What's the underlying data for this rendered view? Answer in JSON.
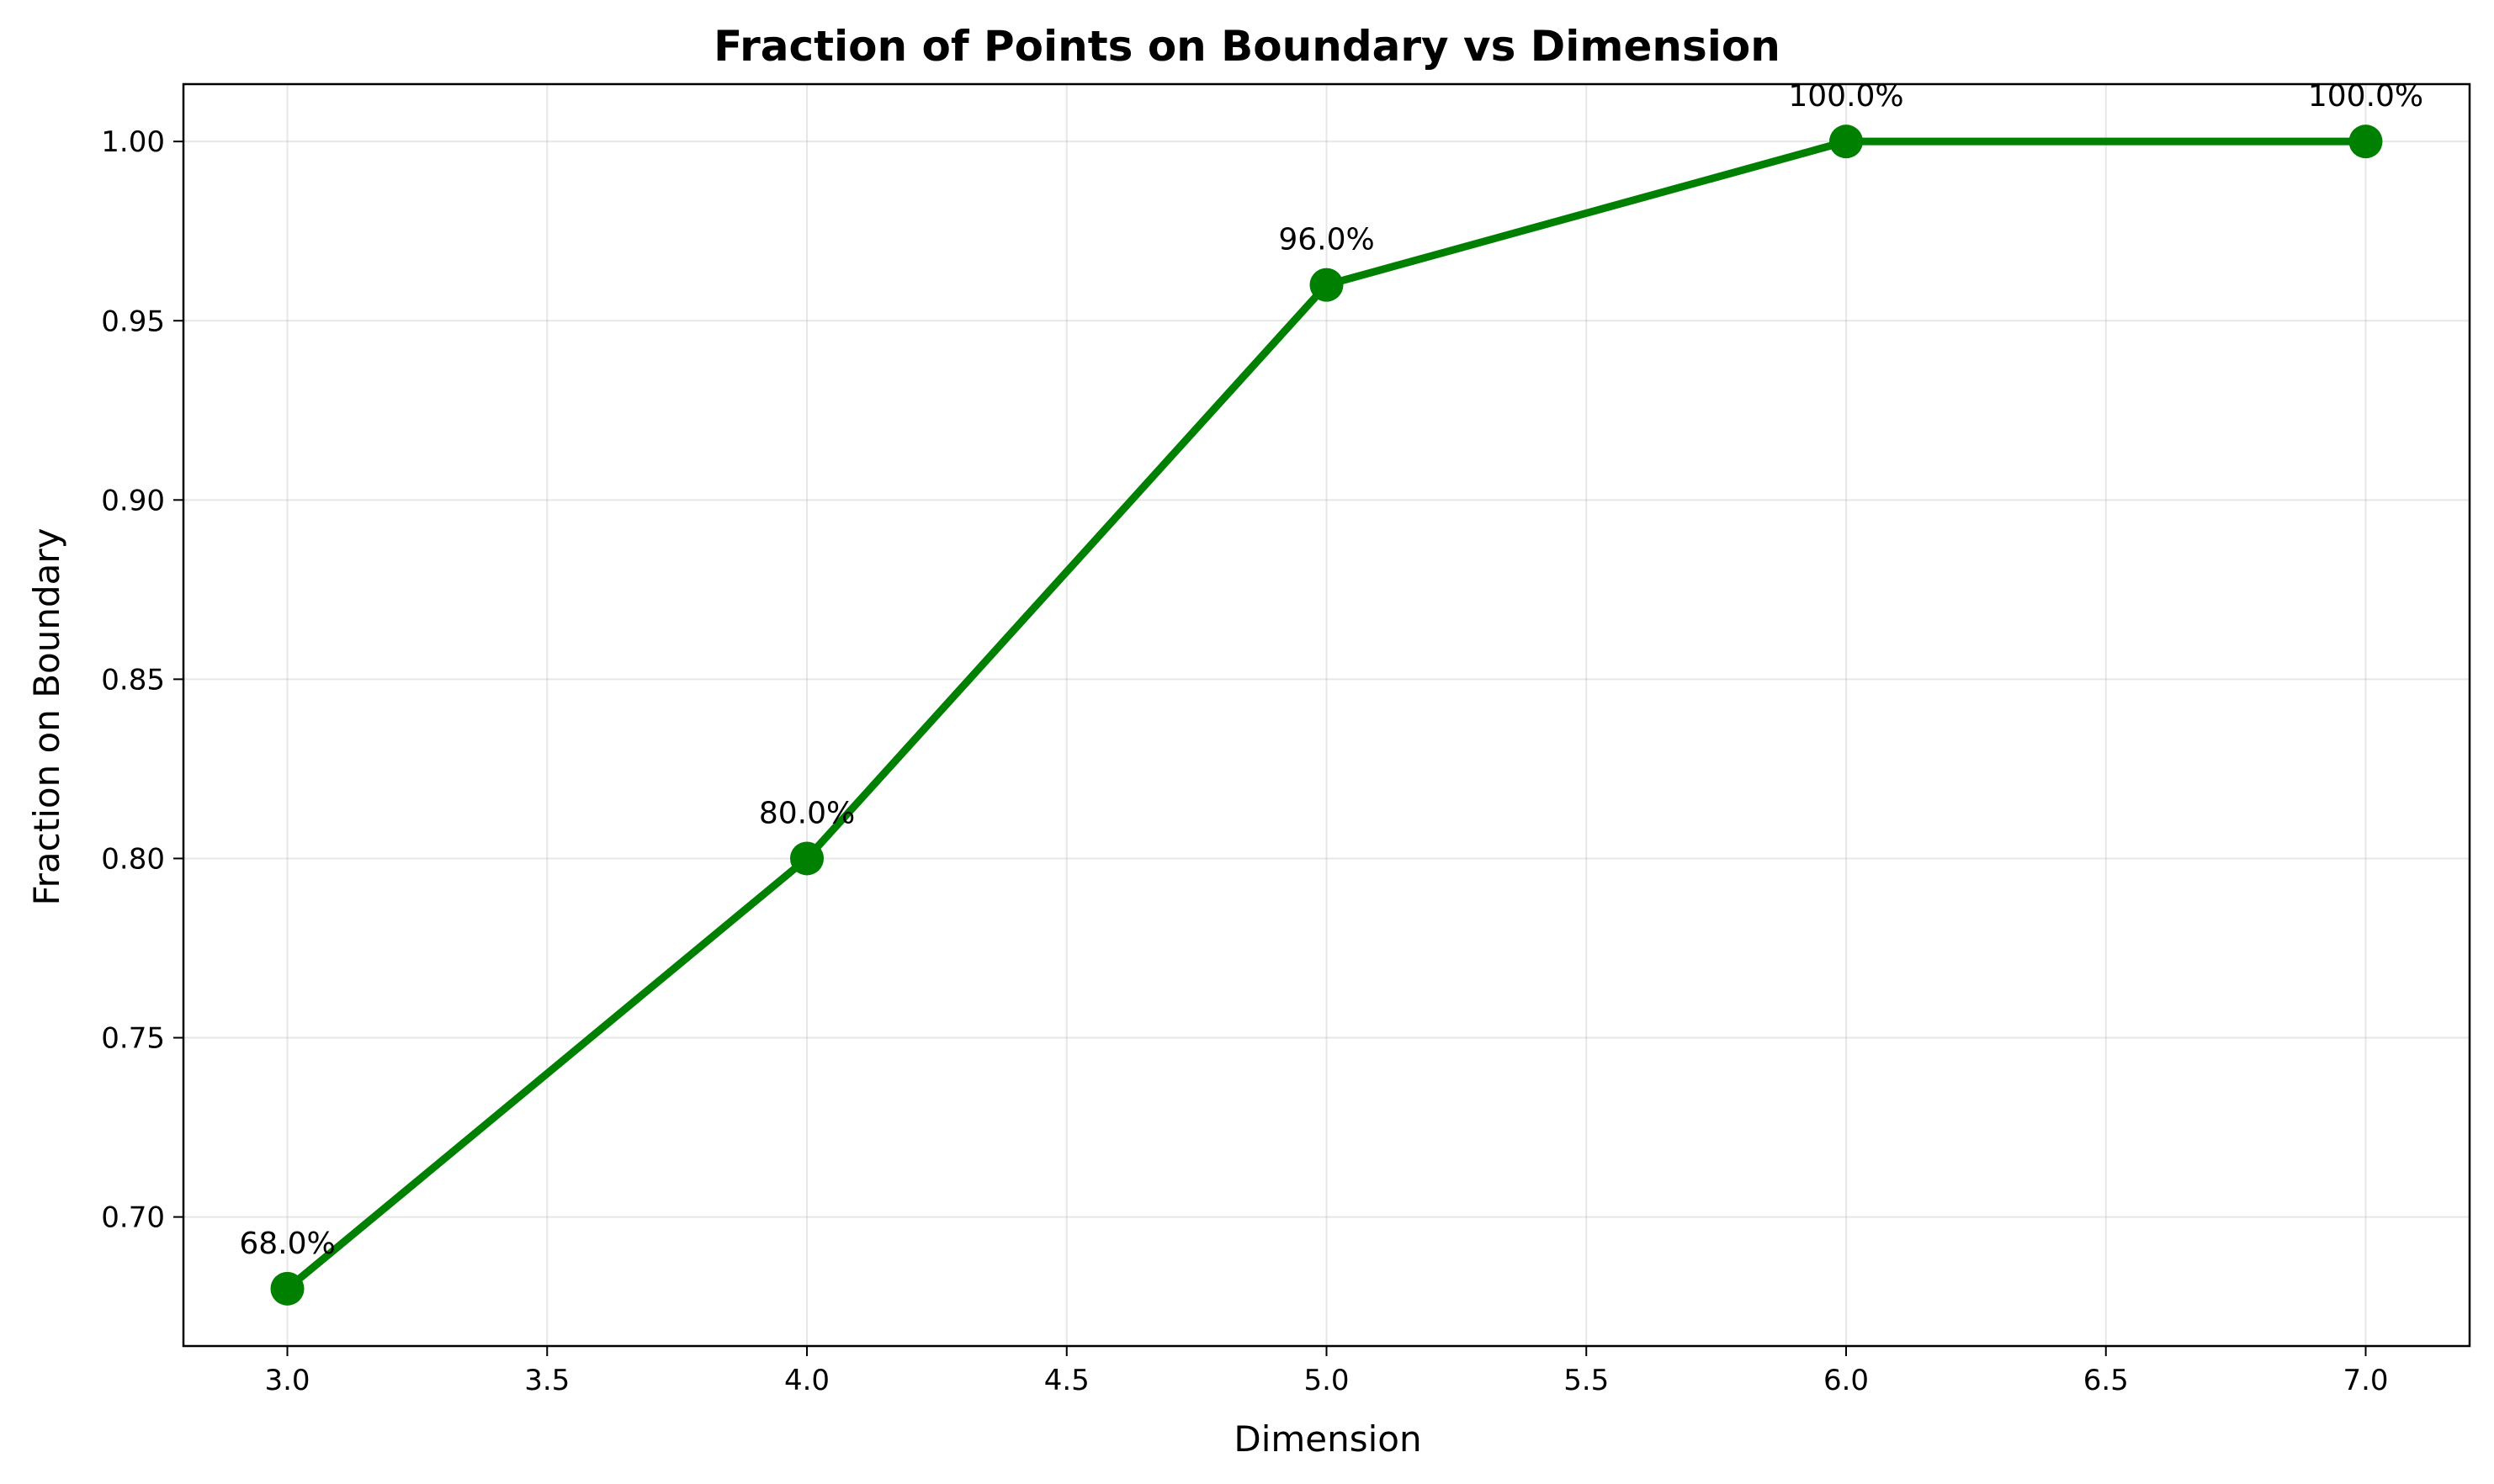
{
  "chart_data": {
    "type": "line",
    "title": "Fraction of Points on Boundary vs Dimension",
    "xlabel": "Dimension",
    "ylabel": "Fraction on Boundary",
    "xlim": [
      2.8,
      7.2
    ],
    "ylim": [
      0.664,
      1.016
    ],
    "grid": true,
    "x": [
      3.0,
      4.0,
      5.0,
      6.0,
      7.0
    ],
    "series": [
      {
        "name": "Fraction on Boundary",
        "color": "#008000",
        "values": [
          0.68,
          0.8,
          0.96,
          1.0,
          1.0
        ]
      }
    ],
    "data_labels": [
      "68.0%",
      "80.0%",
      "96.0%",
      "100.0%",
      "100.0%"
    ],
    "xticks": [
      3.0,
      3.5,
      4.0,
      4.5,
      5.0,
      5.5,
      6.0,
      6.5,
      7.0
    ],
    "xtick_labels": [
      "3.0",
      "3.5",
      "4.0",
      "4.5",
      "5.0",
      "5.5",
      "6.0",
      "6.5",
      "7.0"
    ],
    "yticks": [
      0.7,
      0.75,
      0.8,
      0.85,
      0.9,
      0.95,
      1.0
    ],
    "ytick_labels": [
      "0.70",
      "0.75",
      "0.80",
      "0.85",
      "0.90",
      "0.95",
      "1.00"
    ]
  }
}
